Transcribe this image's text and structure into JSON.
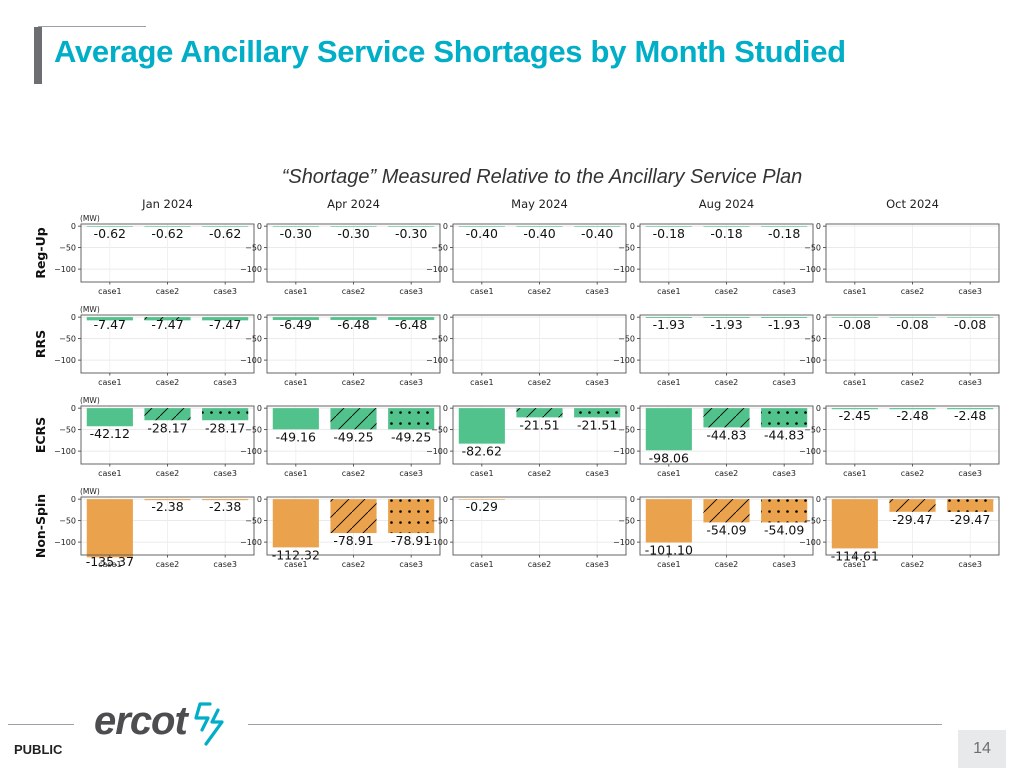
{
  "page": {
    "title": "Average Ancillary Service Shortages by Month Studied",
    "footer_label": "PUBLIC",
    "page_number": "14",
    "logo_text": "ercot"
  },
  "colors": {
    "title": "#00aec7",
    "green": "#52c28c",
    "orange": "#eba24d"
  },
  "chart_data": {
    "type": "bar",
    "subtitle": "“Shortage” Measured Relative to the Ancillary Service Plan",
    "unit_label": "(MW)",
    "columns": [
      "Jan 2024",
      "Apr 2024",
      "May 2024",
      "Aug 2024",
      "Oct 2024"
    ],
    "categories": [
      "case1",
      "case2",
      "case3"
    ],
    "ylim": [
      -130,
      5
    ],
    "yticks": [
      0,
      -50,
      -100
    ],
    "ytick_labels": [
      "0",
      "−50",
      "−100"
    ],
    "hatches": [
      "none",
      "diagonal",
      "dots"
    ],
    "grid": true,
    "rows": [
      {
        "name": "Reg-Up",
        "show_unit": true,
        "values": [
          [
            -0.62,
            -0.62,
            -0.62
          ],
          [
            -0.3,
            -0.3,
            -0.3
          ],
          [
            -0.4,
            -0.4,
            -0.4
          ],
          [
            -0.18,
            -0.18,
            -0.18
          ],
          [
            null,
            null,
            null
          ]
        ],
        "labels": [
          [
            "-0.62",
            "-0.62",
            "-0.62"
          ],
          [
            "-0.30",
            "-0.30",
            "-0.30"
          ],
          [
            "-0.40",
            "-0.40",
            "-0.40"
          ],
          [
            "-0.18",
            "-0.18",
            "-0.18"
          ],
          [
            "",
            "",
            ""
          ]
        ]
      },
      {
        "name": "RRS",
        "show_unit": true,
        "values": [
          [
            -7.47,
            -7.47,
            -7.47
          ],
          [
            -6.49,
            -6.48,
            -6.48
          ],
          [
            null,
            null,
            null
          ],
          [
            -1.93,
            -1.93,
            -1.93
          ],
          [
            -0.08,
            -0.08,
            -0.08
          ]
        ],
        "labels": [
          [
            "-7.47",
            "-7.47",
            "-7.47"
          ],
          [
            "-6.49",
            "-6.48",
            "-6.48"
          ],
          [
            "",
            "",
            ""
          ],
          [
            "-1.93",
            "-1.93",
            "-1.93"
          ],
          [
            "-0.08",
            "-0.08",
            "-0.08"
          ]
        ]
      },
      {
        "name": "ECRS",
        "show_unit": true,
        "values": [
          [
            -42.12,
            -28.17,
            -28.17
          ],
          [
            -49.16,
            -49.25,
            -49.25
          ],
          [
            -82.62,
            -21.51,
            -21.51
          ],
          [
            -98.06,
            -44.83,
            -44.83
          ],
          [
            -2.45,
            -2.48,
            -2.48
          ]
        ],
        "labels": [
          [
            "-42.12",
            "-28.17",
            "-28.17"
          ],
          [
            "-49.16",
            "-49.25",
            "-49.25"
          ],
          [
            "-82.62",
            "-21.51",
            "-21.51"
          ],
          [
            "-98.06",
            "-44.83",
            "-44.83"
          ],
          [
            "-2.45",
            "-2.48",
            "-2.48"
          ]
        ]
      },
      {
        "name": "Non-Spin",
        "show_unit": true,
        "values": [
          [
            -135.37,
            -2.38,
            -2.38
          ],
          [
            -112.32,
            -78.91,
            -78.91
          ],
          [
            -0.29,
            null,
            null
          ],
          [
            -101.1,
            -54.09,
            -54.09
          ],
          [
            -114.61,
            -29.47,
            -29.47
          ]
        ],
        "labels": [
          [
            "-135.37",
            "-2.38",
            "-2.38"
          ],
          [
            "-112.32",
            "-78.91",
            "-78.91"
          ],
          [
            "-0.29",
            "",
            ""
          ],
          [
            "-101.10",
            "-54.09",
            "-54.09"
          ],
          [
            "-114.61",
            "-29.47",
            "-29.47"
          ]
        ]
      }
    ]
  }
}
